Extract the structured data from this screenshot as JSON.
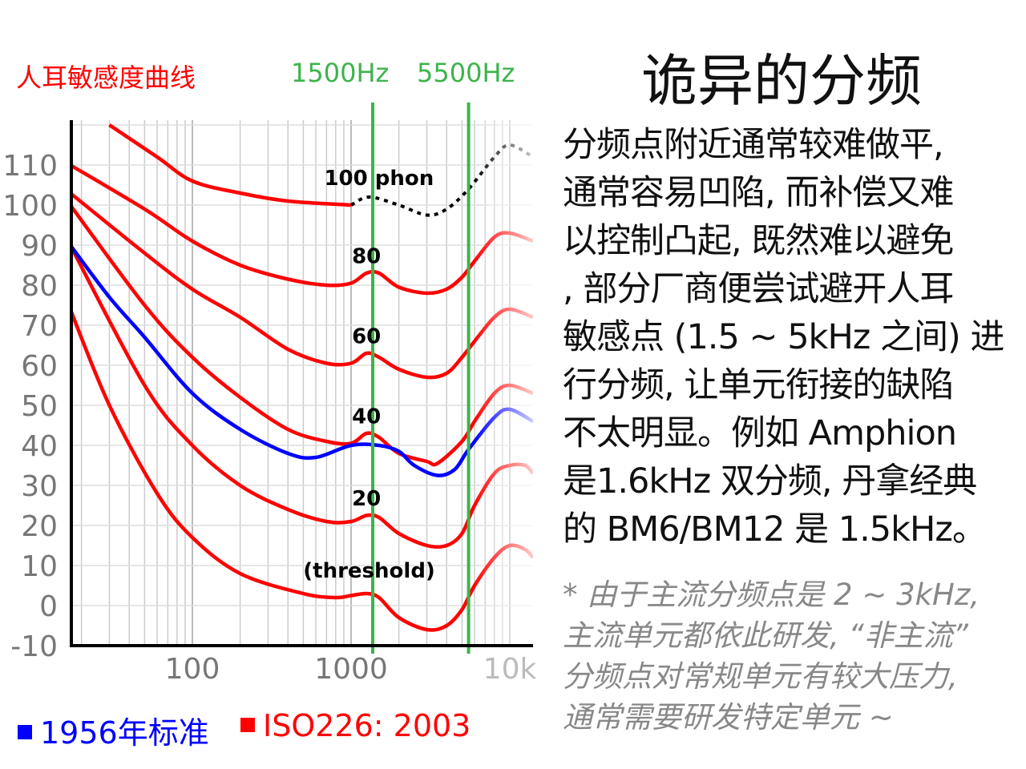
{
  "header": {
    "chart_label": "人耳敏感度曲线",
    "marker1_label": "1500Hz",
    "marker2_label": "5500Hz"
  },
  "title": "诡异的分频",
  "body_lines": [
    "分频点附近通常较难做平,",
    "通常容易凹陷, 而补偿又难",
    "以控制凸起, 既然难以避免",
    ", 部分厂商便尝试避开人耳",
    "敏感点 (1.5 ~ 5kHz 之间) 进",
    "行分频, 让单元衔接的缺陷",
    "不太明显。例如 Amphion",
    "是1.6kHz 双分频, 丹拿经典",
    "的 BM6/BM12 是 1.5kHz。"
  ],
  "note_lines": [
    "* 由于主流分频点是 2 ~ 3kHz,",
    "主流单元都依此研发, “非主流”",
    "分频点对常规单元有较大压力,",
    "通常需要研发特定单元 ~"
  ],
  "legend": [
    {
      "label": "1956年标准",
      "color": "#0000ff"
    },
    {
      "label": "ISO226: 2003",
      "color": "#ff0000"
    }
  ],
  "chart_data": {
    "type": "line",
    "title": "人耳敏感度曲线",
    "xscale": "log",
    "xlim": [
      17,
      14000
    ],
    "ylim": [
      -10,
      120
    ],
    "grid": true,
    "y_ticks": [
      "110",
      "100",
      "90",
      "80",
      "70",
      "60",
      "50",
      "40",
      "30",
      "20",
      "10",
      "0",
      "-10"
    ],
    "x_ticks": [
      {
        "value": 100,
        "label": "100"
      },
      {
        "value": 1000,
        "label": "1000"
      },
      {
        "value": 10000,
        "label": "10k"
      }
    ],
    "markers": [
      {
        "freq": 1500,
        "label": "1500Hz",
        "color": "#3cb44b"
      },
      {
        "freq": 5500,
        "label": "5500Hz",
        "color": "#3cb44b"
      }
    ],
    "series": [
      {
        "name": "(threshold)",
        "label_at": [
          1300,
          7
        ],
        "color": "#ff0000",
        "points": [
          [
            17,
            74
          ],
          [
            30,
            50
          ],
          [
            60,
            28
          ],
          [
            100,
            17
          ],
          [
            200,
            8
          ],
          [
            500,
            3
          ],
          [
            800,
            2
          ],
          [
            1000,
            2.5
          ],
          [
            1250,
            3
          ],
          [
            1500,
            2
          ],
          [
            2000,
            -3
          ],
          [
            3000,
            -6
          ],
          [
            4000,
            -5
          ],
          [
            5000,
            -1
          ],
          [
            6000,
            5
          ],
          [
            8000,
            12
          ],
          [
            10000,
            15
          ],
          [
            12500,
            14
          ],
          [
            14000,
            12
          ]
        ]
      },
      {
        "name": "20",
        "label_at": [
          1250,
          25
        ],
        "color": "#ff0000",
        "points": [
          [
            17,
            90
          ],
          [
            50,
            55
          ],
          [
            100,
            40
          ],
          [
            200,
            30
          ],
          [
            400,
            24
          ],
          [
            700,
            21
          ],
          [
            1000,
            21
          ],
          [
            1250,
            22.5
          ],
          [
            1500,
            22
          ],
          [
            2000,
            18
          ],
          [
            3000,
            15
          ],
          [
            4000,
            15
          ],
          [
            5000,
            18
          ],
          [
            6000,
            25
          ],
          [
            8000,
            33
          ],
          [
            10000,
            35
          ],
          [
            12500,
            35
          ],
          [
            14000,
            33
          ]
        ]
      },
      {
        "name": "40",
        "label_at": [
          1250,
          45.5
        ],
        "color": "#ff0000",
        "points": [
          [
            17,
            100
          ],
          [
            50,
            75
          ],
          [
            100,
            62
          ],
          [
            200,
            52
          ],
          [
            400,
            44
          ],
          [
            700,
            41
          ],
          [
            1000,
            40.5
          ],
          [
            1250,
            43
          ],
          [
            1500,
            42
          ],
          [
            2000,
            38
          ],
          [
            3000,
            36
          ],
          [
            3500,
            35.5
          ],
          [
            5000,
            41
          ],
          [
            6000,
            46
          ],
          [
            8000,
            53
          ],
          [
            10000,
            55
          ],
          [
            14000,
            53
          ]
        ]
      },
      {
        "name": "60",
        "label_at": [
          1250,
          65.5
        ],
        "color": "#ff0000",
        "points": [
          [
            17,
            103
          ],
          [
            50,
            88
          ],
          [
            100,
            79
          ],
          [
            200,
            72
          ],
          [
            400,
            64
          ],
          [
            700,
            60.5
          ],
          [
            1000,
            60.5
          ],
          [
            1250,
            63
          ],
          [
            1500,
            62
          ],
          [
            2000,
            59
          ],
          [
            3000,
            57
          ],
          [
            4000,
            58
          ],
          [
            5000,
            62
          ],
          [
            6000,
            66
          ],
          [
            8000,
            72
          ],
          [
            10000,
            74
          ],
          [
            14000,
            72
          ]
        ]
      },
      {
        "name": "80",
        "label_at": [
          1250,
          85.5
        ],
        "color": "#ff0000",
        "points": [
          [
            17,
            110
          ],
          [
            50,
            99
          ],
          [
            100,
            91
          ],
          [
            200,
            85
          ],
          [
            400,
            81.5
          ],
          [
            700,
            80
          ],
          [
            1000,
            80.5
          ],
          [
            1250,
            83
          ],
          [
            1500,
            83
          ],
          [
            2000,
            79.5
          ],
          [
            3000,
            78
          ],
          [
            4000,
            79
          ],
          [
            5000,
            82
          ],
          [
            6000,
            86
          ],
          [
            8000,
            92
          ],
          [
            10000,
            93
          ],
          [
            14000,
            91
          ]
        ]
      },
      {
        "name": "100 phon",
        "label_at": [
          1500,
          105
        ],
        "color": "#ff0000",
        "points": [
          [
            30,
            120
          ],
          [
            60,
            112
          ],
          [
            100,
            106
          ],
          [
            200,
            103
          ],
          [
            400,
            101
          ],
          [
            1000,
            100
          ]
        ]
      },
      {
        "name": "100 phon (extrapolated)",
        "color": "#000000",
        "dashed": true,
        "points": [
          [
            1000,
            100
          ],
          [
            1300,
            102
          ],
          [
            2000,
            100
          ],
          [
            3000,
            97.5
          ],
          [
            4000,
            99
          ],
          [
            5500,
            104
          ],
          [
            8000,
            112
          ],
          [
            10000,
            115
          ],
          [
            14000,
            112
          ]
        ]
      },
      {
        "name": "1956年标准",
        "color": "#0000ff",
        "points": [
          [
            17,
            90
          ],
          [
            30,
            77
          ],
          [
            50,
            67
          ],
          [
            100,
            53
          ],
          [
            200,
            44
          ],
          [
            400,
            38
          ],
          [
            600,
            37
          ],
          [
            1000,
            40
          ],
          [
            1500,
            40
          ],
          [
            2000,
            38.5
          ],
          [
            2500,
            35
          ],
          [
            3500,
            32.5
          ],
          [
            4500,
            34
          ],
          [
            5500,
            39
          ],
          [
            8000,
            47
          ],
          [
            10000,
            49
          ],
          [
            14000,
            46
          ]
        ]
      }
    ]
  }
}
